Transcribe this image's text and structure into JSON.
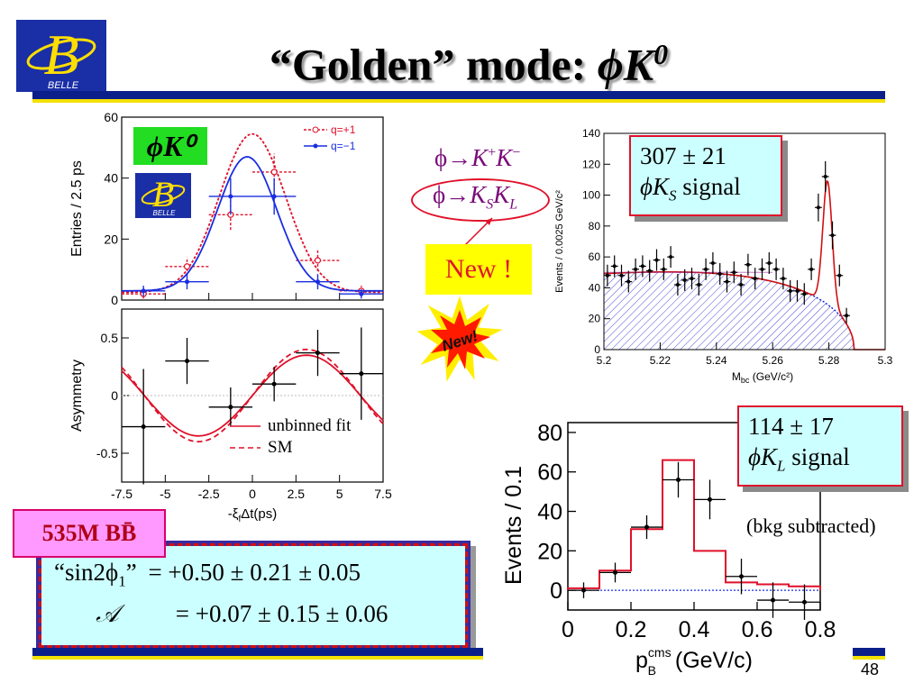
{
  "slide": {
    "title_prefix": "“Golden” mode:",
    "title_phi": "ϕ",
    "title_K": "K",
    "title_sup": "0",
    "page_number": "48"
  },
  "logo": {
    "letter": "B",
    "name": "BELLE"
  },
  "decays": {
    "first": {
      "phi": "ϕ",
      "arrow": "→",
      "k1": "K",
      "s1": "+",
      "k2": "K",
      "s2": "−"
    },
    "second": {
      "phi": "ϕ",
      "arrow": "→",
      "k1": "K",
      "sub1": "S",
      "k2": "K",
      "sub2": "L"
    }
  },
  "new_label": "New !",
  "new_burst_label": "New!",
  "signals": {
    "ks": {
      "yield": "307 ± 21",
      "phi": "ϕ",
      "K": "K",
      "sub": "S",
      "word": "signal"
    },
    "kl": {
      "yield": "114 ± 17",
      "phi": "ϕ",
      "K": "K",
      "sub": "L",
      "word": "signal"
    },
    "bkg_note": "(bkg subtracted)"
  },
  "sample": "535M BB̄",
  "results": {
    "line1_label": "“sin2ϕ",
    "line1_sub": "1",
    "line1_close": "”",
    "line1_value": "= +0.50 ± 0.21 ± 0.05",
    "line2_label": "𝒜",
    "line2_value": "= +0.07 ± 0.15 ± 0.06"
  },
  "colors": {
    "stripe_blue": "#0b1f8a",
    "stripe_yellow": "#f3e100",
    "red": "#e0102a",
    "blue": "#1a2ee0",
    "purple": "#7a0a7a"
  },
  "chart_data": [
    {
      "type": "scatter",
      "panel": "dt-entries",
      "ylabel": "Entries / 2.5 ps",
      "inset_label": "ϕK⁰",
      "ylim": [
        0,
        60
      ],
      "y_ticks": [
        "0",
        "20",
        "40",
        "60"
      ],
      "legend_placement": "top-right",
      "series": [
        {
          "name": "q=+1",
          "color": "#e0102a",
          "x": [
            -6.25,
            -3.75,
            -1.25,
            1.25,
            3.75,
            6.25
          ],
          "y": [
            2,
            11,
            28,
            42,
            13,
            3
          ],
          "yerr": [
            1.5,
            3,
            5,
            6,
            3.5,
            1.7
          ],
          "curve": {
            "mu": 0.0,
            "sigma": 1.9,
            "amp": 52,
            "base": 2.5
          }
        },
        {
          "name": "q=−1",
          "color": "#1a2ee0",
          "x": [
            -6.25,
            -3.75,
            -1.25,
            1.25,
            3.75,
            6.25
          ],
          "y": [
            3,
            6,
            34,
            34,
            6,
            2
          ],
          "yerr": [
            1.7,
            2.5,
            6,
            6,
            2.5,
            1.5
          ],
          "curve": {
            "mu": -0.3,
            "sigma": 1.7,
            "amp": 44,
            "base": 3
          }
        }
      ]
    },
    {
      "type": "scatter",
      "panel": "asymmetry",
      "ylabel": "Asymmetry",
      "xlabel": "-ξ_fΔt(ps)",
      "xlabel_main": "-ξ",
      "xlabel_sub": "f",
      "xlabel_tail": "Δt(ps)",
      "xlim": [
        -7.5,
        7.5
      ],
      "x_ticks": [
        "-7.5",
        "-5",
        "-2.5",
        "0",
        "2.5",
        "5",
        "7.5"
      ],
      "y_ticks": [
        "-0.5",
        "0",
        "0.5"
      ],
      "points": {
        "x": [
          -6.25,
          -3.75,
          -1.25,
          1.25,
          3.75,
          6.25
        ],
        "y": [
          -0.27,
          0.3,
          -0.1,
          0.1,
          0.37,
          0.19
        ],
        "yerr": [
          0.5,
          0.2,
          0.17,
          0.15,
          0.2,
          0.4
        ]
      },
      "legend": [
        "unbinned fit",
        "SM"
      ],
      "fit_amp": 0.35,
      "sm_amp": 0.4
    },
    {
      "type": "scatter",
      "panel": "mbc",
      "ylabel": "Events / 0.0025 GeV/c²",
      "xlabel": "M_bc (GeV/c²)",
      "xlabel_main": "M",
      "xlabel_sub": "bc",
      "xlabel_tail": " (GeV/c²)",
      "xlim": [
        5.2,
        5.3
      ],
      "ylim": [
        0,
        140
      ],
      "x_ticks": [
        "5.2",
        "5.22",
        "5.24",
        "5.26",
        "5.28",
        "5.3"
      ],
      "y_ticks": [
        "0",
        "20",
        "40",
        "60",
        "80",
        "100",
        "120",
        "140"
      ],
      "points": {
        "x": [
          5.20125,
          5.20375,
          5.20625,
          5.20875,
          5.21125,
          5.21375,
          5.21625,
          5.21875,
          5.22125,
          5.22375,
          5.22625,
          5.22875,
          5.23125,
          5.23375,
          5.23625,
          5.23875,
          5.24125,
          5.24375,
          5.24625,
          5.24875,
          5.25125,
          5.25375,
          5.25625,
          5.25875,
          5.26125,
          5.26375,
          5.26625,
          5.26875,
          5.27125,
          5.27375,
          5.27625,
          5.27875,
          5.28125,
          5.28375,
          5.28625
        ],
        "y": [
          48,
          54,
          48,
          44,
          52,
          54,
          51,
          58,
          52,
          60,
          42,
          45,
          46,
          42,
          52,
          56,
          49,
          44,
          50,
          42,
          55,
          46,
          52,
          56,
          52,
          46,
          38,
          38,
          36,
          52,
          92,
          112,
          74,
          48,
          22
        ],
        "yerr": [
          7,
          7,
          7,
          7,
          7,
          7,
          7,
          7,
          7,
          7,
          7,
          7,
          7,
          7,
          7,
          7,
          7,
          7,
          7,
          7,
          7,
          7,
          7,
          7,
          7,
          7,
          7,
          7,
          7,
          7,
          9,
          10,
          9,
          7,
          5
        ]
      },
      "background_peak": 50,
      "signal": {
        "mean": 5.2795,
        "sigma": 0.00165,
        "amp": 80
      }
    },
    {
      "type": "bar",
      "panel": "pB",
      "ylabel": "Events / 0.1",
      "xlabel": "p_B^cms (GeV/c)",
      "xlabel_main": "p",
      "xlabel_sub": "B",
      "xlabel_sup": "cms",
      "xlabel_tail": " (GeV/c)",
      "xlim": [
        0,
        0.8
      ],
      "ylim": [
        -10,
        85
      ],
      "x_ticks": [
        "0",
        "0.2",
        "0.4",
        "0.6",
        "0.8"
      ],
      "y_ticks": [
        "0",
        "20",
        "40",
        "60",
        "80"
      ],
      "hist": {
        "edges": [
          0,
          0.1,
          0.2,
          0.3,
          0.4,
          0.5,
          0.6,
          0.7,
          0.8
        ],
        "values": [
          1,
          10,
          31,
          66,
          20,
          4,
          3,
          2
        ]
      },
      "points": {
        "x": [
          0.05,
          0.15,
          0.25,
          0.35,
          0.45,
          0.55,
          0.65,
          0.75
        ],
        "y": [
          0,
          9,
          32,
          56,
          46,
          7,
          -5,
          -6
        ],
        "yerr": [
          4,
          5,
          6,
          9,
          10,
          9,
          9,
          9
        ]
      }
    }
  ]
}
